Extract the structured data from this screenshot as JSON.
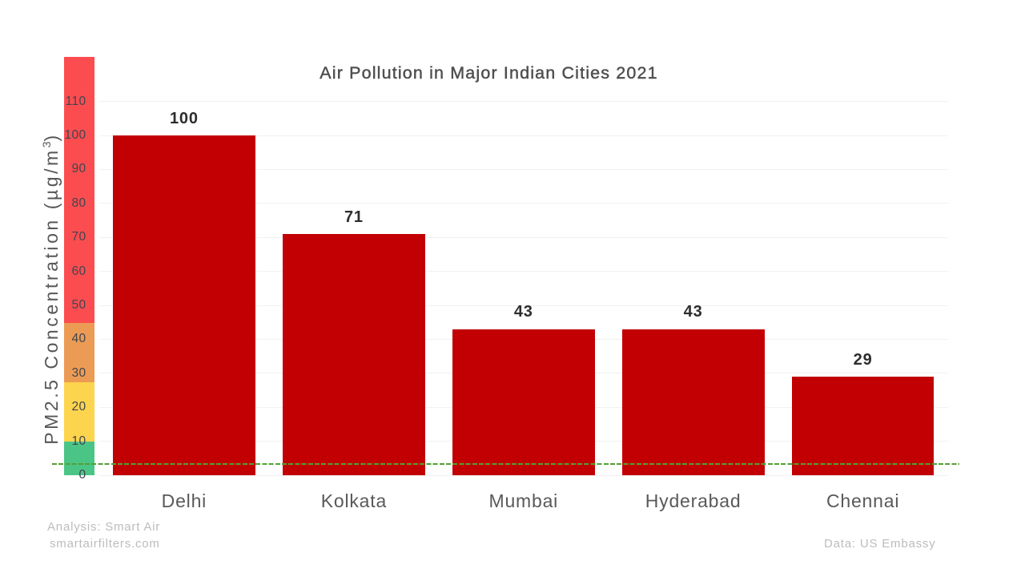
{
  "chart_data": {
    "type": "bar",
    "title": "Air Pollution in Major Indian Cities 2021",
    "categories": [
      "Delhi",
      "Kolkata",
      "Mumbai",
      "Hyderabad",
      "Chennai"
    ],
    "values": [
      100,
      71,
      43,
      43,
      29
    ],
    "value_labels": [
      "100",
      "71",
      "43",
      "43",
      "29"
    ],
    "xlabel": "",
    "ylabel": "PM2.5 Concentration (µg/m³)",
    "ylim": [
      0,
      123.2
    ],
    "yticks": [
      0,
      10,
      20,
      30,
      40,
      50,
      60,
      70,
      80,
      90,
      100,
      110
    ],
    "grid": "horizontal",
    "legend_position": "none",
    "bar_color": "#c20003",
    "gridline_color": "#f1f1f1",
    "reference_line": {
      "value": 3.2,
      "style": "dashed",
      "color": "#52a033"
    },
    "y_scale_bands": [
      {
        "from": 0,
        "to": 10,
        "color": "#4bc586"
      },
      {
        "from": 10,
        "to": 27.4,
        "color": "#fdd44e"
      },
      {
        "from": 27.4,
        "to": 44.8,
        "color": "#ec9b55"
      },
      {
        "from": 44.8,
        "to": 123.2,
        "color": "#fb4d50"
      }
    ]
  },
  "y_axis_title": {
    "prefix": "PM2.5 Concentration (µg/m",
    "sup": "3",
    "suffix": ")"
  },
  "footer": {
    "analysis": "Analysis: Smart Air",
    "website": "smartairfilters.com",
    "source": "Data: US Embassy"
  }
}
